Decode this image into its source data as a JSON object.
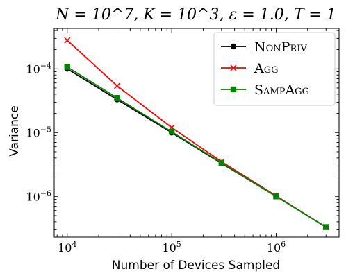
{
  "chart_data": {
    "type": "line",
    "title": "N = 10^7, K = 10^3, ε = 1.0, T = 1",
    "xlabel": "Number of Devices Sampled",
    "ylabel": "Variance",
    "x_scale": "log",
    "y_scale": "log",
    "xlim": [
      7500,
      4000000
    ],
    "ylim": [
      2.3e-07,
      0.00043
    ],
    "x_ticks": [
      {
        "value": 10000,
        "base": "10",
        "exp": "4"
      },
      {
        "value": 100000,
        "base": "10",
        "exp": "5"
      },
      {
        "value": 1000000,
        "base": "10",
        "exp": "6"
      }
    ],
    "y_ticks": [
      {
        "value": 1e-06,
        "base": "10",
        "exp": "−6"
      },
      {
        "value": 1e-05,
        "base": "10",
        "exp": "−5"
      },
      {
        "value": 0.0001,
        "base": "10",
        "exp": "−4"
      }
    ],
    "grid": false,
    "legend_position": "top-right",
    "x": [
      10000,
      30000,
      100000,
      300000,
      1000000,
      3000000
    ],
    "series": [
      {
        "name": "NonPriv",
        "marker": "circle",
        "color": "#000000",
        "values": [
          0.0001,
          3.3e-05,
          1e-05,
          3.3e-06,
          1e-06,
          3.3e-07
        ]
      },
      {
        "name": "Agg",
        "marker": "x",
        "color": "#ff0000",
        "values": [
          0.00028,
          5.4e-05,
          1.2e-05,
          3.5e-06,
          1.02e-06,
          3.3e-07
        ]
      },
      {
        "name": "SampAgg",
        "marker": "square",
        "color": "#008000",
        "values": [
          0.000107,
          3.5e-05,
          1.03e-05,
          3.35e-06,
          1e-06,
          3.3e-07
        ]
      }
    ]
  }
}
